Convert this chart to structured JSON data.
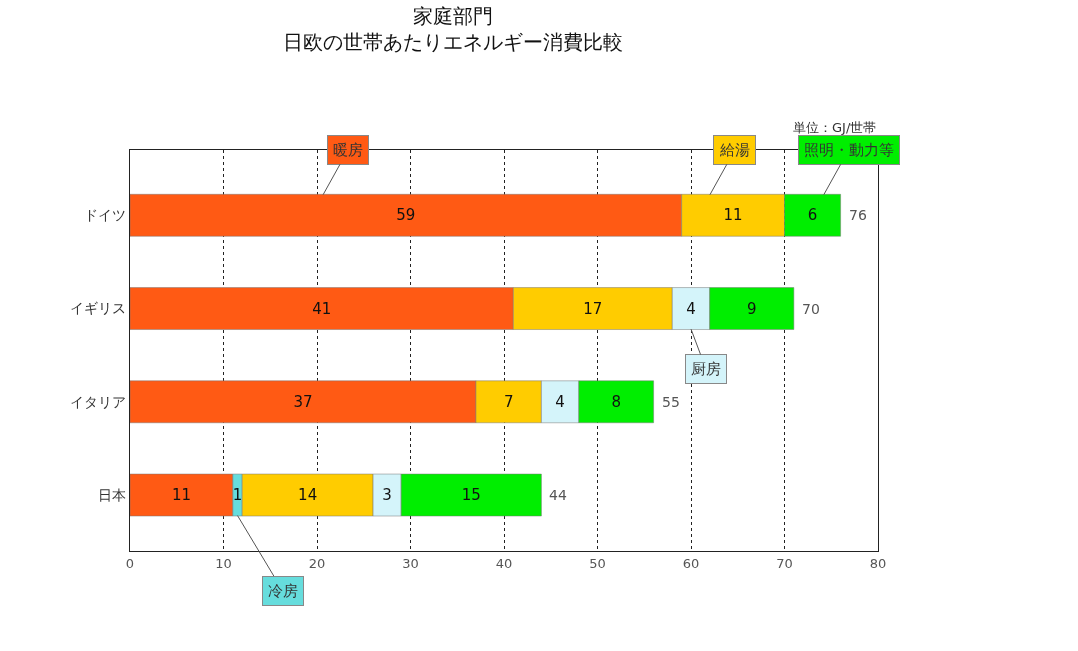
{
  "chart_data": {
    "type": "bar",
    "orientation": "horizontal",
    "stacked": true,
    "title": "家庭部門",
    "subtitle": "日欧の世帯あたりエネルギー消費比較",
    "categories": [
      "ドイツ",
      "イギリス",
      "イタリア",
      "日本"
    ],
    "series": [
      {
        "name": "暖房",
        "color": "#ff5a14",
        "values": [
          59,
          41,
          37,
          11
        ]
      },
      {
        "name": "冷房",
        "color": "#66dddd",
        "values": [
          null,
          null,
          null,
          1
        ]
      },
      {
        "name": "給湯",
        "color": "#ffcc00",
        "values": [
          11,
          17,
          7,
          14
        ]
      },
      {
        "name": "厨房",
        "color": "#d4f4fa",
        "values": [
          null,
          4,
          4,
          3
        ]
      },
      {
        "name": "照明・動力等",
        "color": "#00ee00",
        "values": [
          6,
          9,
          8,
          15
        ]
      }
    ],
    "totals": [
      "76",
      "70",
      "55",
      "44"
    ],
    "data_labels": true,
    "xlim": [
      0,
      80
    ],
    "xticks": [
      0,
      10,
      20,
      30,
      40,
      50,
      60,
      70,
      80
    ],
    "grid": "x",
    "legend": false,
    "annotations": [
      "単位：GJ/世帯"
    ]
  }
}
